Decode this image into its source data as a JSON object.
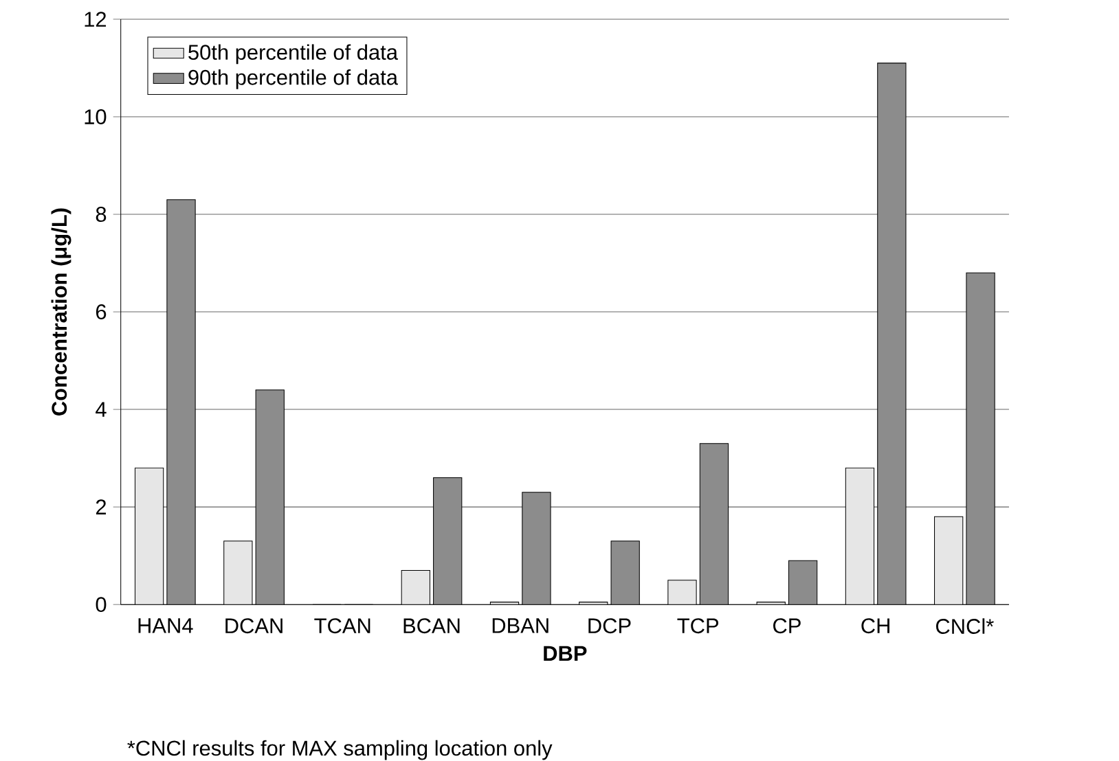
{
  "chart_data": {
    "type": "bar",
    "xlabel": "DBP",
    "ylabel": "Concentration (μg/L)",
    "categories": [
      "HAN4",
      "DCAN",
      "TCAN",
      "BCAN",
      "DBAN",
      "DCP",
      "TCP",
      "CP",
      "CH",
      "CNCl*"
    ],
    "series": [
      {
        "name": "50th percentile of data",
        "color": "#e6e6e6",
        "values": [
          2.8,
          1.3,
          0,
          0.7,
          0.05,
          0.05,
          0.5,
          0.05,
          2.8,
          1.8
        ]
      },
      {
        "name": "90th percentile of data",
        "color": "#8c8c8c",
        "values": [
          8.3,
          4.4,
          0,
          2.6,
          2.3,
          1.3,
          3.3,
          0.9,
          11.1,
          6.8
        ]
      }
    ],
    "ylim": [
      0,
      12
    ],
    "yticks": [
      0,
      2,
      4,
      6,
      8,
      10,
      12
    ],
    "grid": "y",
    "legend": "top left",
    "annotations": [
      "*CNCl results for MAX sampling location only"
    ]
  }
}
